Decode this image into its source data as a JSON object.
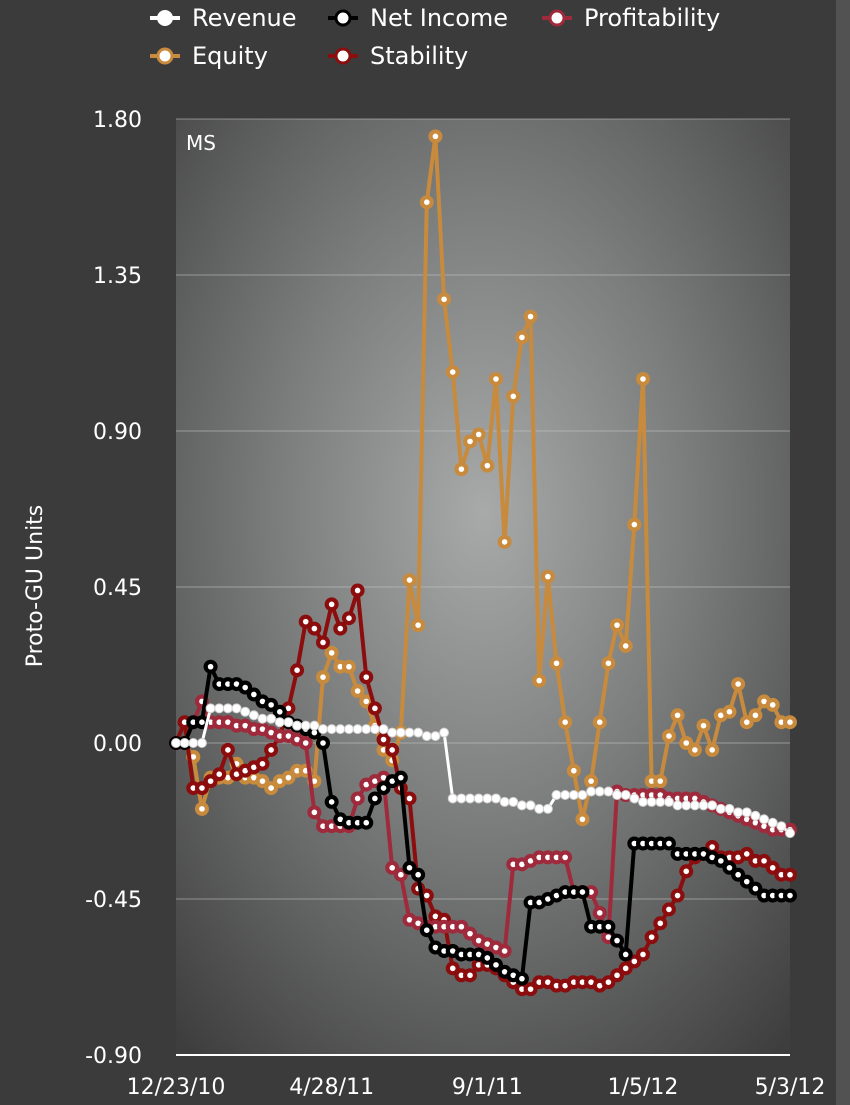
{
  "chart_data": {
    "type": "line",
    "panel_label": "MS",
    "ylabel": "Proto-GU Units",
    "ylim": [
      -0.9,
      1.8
    ],
    "yticks": [
      "1.80",
      "1.35",
      "0.90",
      "0.45",
      "0.00",
      "-0.45",
      "-0.90"
    ],
    "ytick_values": [
      1.8,
      1.35,
      0.9,
      0.45,
      0.0,
      -0.45,
      -0.9
    ],
    "xlim": [
      "2010-12-23",
      "2012-05-03"
    ],
    "xticks": [
      "12/23/10",
      "4/28/11",
      "9/1/11",
      "1/5/12",
      "5/3/12"
    ],
    "xtick_dates": [
      "2010-12-23",
      "2011-04-28",
      "2011-09-01",
      "2012-01-05",
      "2012-05-03"
    ],
    "grid": "horizontal",
    "legend_position": "top",
    "series": [
      {
        "name": "Revenue",
        "color": "#ffffff",
        "x": [
          "2010-12-23",
          "2010-12-30",
          "2011-01-06",
          "2011-01-13",
          "2011-01-20",
          "2011-01-27",
          "2011-02-03",
          "2011-02-10",
          "2011-02-17",
          "2011-02-24",
          "2011-03-03",
          "2011-03-10",
          "2011-03-17",
          "2011-03-24",
          "2011-03-31",
          "2011-04-07",
          "2011-04-14",
          "2011-04-21",
          "2011-04-28",
          "2011-05-05",
          "2011-05-12",
          "2011-05-19",
          "2011-05-26",
          "2011-06-02",
          "2011-06-09",
          "2011-06-16",
          "2011-06-23",
          "2011-06-30",
          "2011-07-07",
          "2011-07-14",
          "2011-07-21",
          "2011-07-28",
          "2011-08-04",
          "2011-08-11",
          "2011-08-18",
          "2011-08-25",
          "2011-09-01",
          "2011-09-08",
          "2011-09-15",
          "2011-09-22",
          "2011-09-29",
          "2011-10-06",
          "2011-10-13",
          "2011-10-20",
          "2011-10-27",
          "2011-11-03",
          "2011-11-10",
          "2011-11-17",
          "2011-11-24",
          "2011-12-01",
          "2011-12-08",
          "2011-12-15",
          "2011-12-22",
          "2011-12-29",
          "2012-01-05",
          "2012-01-12",
          "2012-01-19",
          "2012-01-26",
          "2012-02-02",
          "2012-02-09",
          "2012-02-16",
          "2012-02-23",
          "2012-03-01",
          "2012-03-08",
          "2012-03-15",
          "2012-03-22",
          "2012-03-29",
          "2012-04-05",
          "2012-04-12",
          "2012-04-19",
          "2012-04-26",
          "2012-05-03"
        ],
        "values": [
          0.0,
          0.0,
          0.0,
          0.0,
          0.1,
          0.1,
          0.1,
          0.1,
          0.09,
          0.08,
          0.07,
          0.07,
          0.06,
          0.06,
          0.05,
          0.05,
          0.05,
          0.04,
          0.04,
          0.04,
          0.04,
          0.04,
          0.04,
          0.04,
          0.04,
          0.03,
          0.03,
          0.03,
          0.03,
          0.02,
          0.02,
          0.03,
          -0.16,
          -0.16,
          -0.16,
          -0.16,
          -0.16,
          -0.16,
          -0.17,
          -0.17,
          -0.18,
          -0.18,
          -0.19,
          -0.19,
          -0.15,
          -0.15,
          -0.15,
          -0.15,
          -0.14,
          -0.14,
          -0.14,
          -0.15,
          -0.15,
          -0.16,
          -0.17,
          -0.17,
          -0.17,
          -0.17,
          -0.18,
          -0.18,
          -0.18,
          -0.18,
          -0.18,
          -0.19,
          -0.19,
          -0.2,
          -0.2,
          -0.21,
          -0.22,
          -0.23,
          -0.24,
          -0.26
        ]
      },
      {
        "name": "Net Income",
        "color": "#000000",
        "x": [
          "2010-12-23",
          "2010-12-30",
          "2011-01-06",
          "2011-01-13",
          "2011-01-20",
          "2011-01-27",
          "2011-02-03",
          "2011-02-10",
          "2011-02-17",
          "2011-02-24",
          "2011-03-03",
          "2011-03-10",
          "2011-03-17",
          "2011-03-24",
          "2011-03-31",
          "2011-04-07",
          "2011-04-14",
          "2011-04-21",
          "2011-04-28",
          "2011-05-05",
          "2011-05-12",
          "2011-05-19",
          "2011-05-26",
          "2011-06-02",
          "2011-06-09",
          "2011-06-16",
          "2011-06-23",
          "2011-06-30",
          "2011-07-07",
          "2011-07-14",
          "2011-07-21",
          "2011-07-28",
          "2011-08-04",
          "2011-08-11",
          "2011-08-18",
          "2011-08-25",
          "2011-09-01",
          "2011-09-08",
          "2011-09-15",
          "2011-09-22",
          "2011-09-29",
          "2011-10-06",
          "2011-10-13",
          "2011-10-20",
          "2011-10-27",
          "2011-11-03",
          "2011-11-10",
          "2011-11-17",
          "2011-11-24",
          "2011-12-01",
          "2011-12-08",
          "2011-12-15",
          "2011-12-22",
          "2011-12-29",
          "2012-01-05",
          "2012-01-12",
          "2012-01-19",
          "2012-01-26",
          "2012-02-02",
          "2012-02-09",
          "2012-02-16",
          "2012-02-23",
          "2012-03-01",
          "2012-03-08",
          "2012-03-15",
          "2012-03-22",
          "2012-03-29",
          "2012-04-05",
          "2012-04-12",
          "2012-04-19",
          "2012-04-26",
          "2012-05-03"
        ],
        "values": [
          0.0,
          0.0,
          0.06,
          0.06,
          0.22,
          0.17,
          0.17,
          0.17,
          0.16,
          0.14,
          0.12,
          0.11,
          0.09,
          0.06,
          0.05,
          0.04,
          0.03,
          0.0,
          -0.17,
          -0.22,
          -0.23,
          -0.23,
          -0.23,
          -0.16,
          -0.13,
          -0.11,
          -0.1,
          -0.36,
          -0.38,
          -0.54,
          -0.59,
          -0.6,
          -0.6,
          -0.61,
          -0.61,
          -0.61,
          -0.62,
          -0.64,
          -0.66,
          -0.67,
          -0.68,
          -0.46,
          -0.46,
          -0.45,
          -0.44,
          -0.43,
          -0.43,
          -0.43,
          -0.53,
          -0.53,
          -0.53,
          -0.57,
          -0.61,
          -0.29,
          -0.29,
          -0.29,
          -0.29,
          -0.29,
          -0.32,
          -0.32,
          -0.32,
          -0.32,
          -0.33,
          -0.34,
          -0.36,
          -0.38,
          -0.4,
          -0.42,
          -0.44,
          -0.44,
          -0.44,
          -0.44
        ]
      },
      {
        "name": "Profitability",
        "color": "#9e2a3c",
        "x": [
          "2010-12-23",
          "2010-12-30",
          "2011-01-06",
          "2011-01-13",
          "2011-01-20",
          "2011-01-27",
          "2011-02-03",
          "2011-02-10",
          "2011-02-17",
          "2011-02-24",
          "2011-03-03",
          "2011-03-10",
          "2011-03-17",
          "2011-03-24",
          "2011-03-31",
          "2011-04-07",
          "2011-04-14",
          "2011-04-21",
          "2011-04-28",
          "2011-05-05",
          "2011-05-12",
          "2011-05-19",
          "2011-05-26",
          "2011-06-02",
          "2011-06-09",
          "2011-06-16",
          "2011-06-23",
          "2011-06-30",
          "2011-07-07",
          "2011-07-14",
          "2011-07-21",
          "2011-07-28",
          "2011-08-04",
          "2011-08-11",
          "2011-08-18",
          "2011-08-25",
          "2011-09-01",
          "2011-09-08",
          "2011-09-15",
          "2011-09-22",
          "2011-09-29",
          "2011-10-06",
          "2011-10-13",
          "2011-10-20",
          "2011-10-27",
          "2011-11-03",
          "2011-11-10",
          "2011-11-17",
          "2011-11-24",
          "2011-12-01",
          "2011-12-08",
          "2011-12-15",
          "2011-12-22",
          "2011-12-29",
          "2012-01-05",
          "2012-01-12",
          "2012-01-19",
          "2012-01-26",
          "2012-02-02",
          "2012-02-09",
          "2012-02-16",
          "2012-02-23",
          "2012-03-01",
          "2012-03-08",
          "2012-03-15",
          "2012-03-22",
          "2012-03-29",
          "2012-04-05",
          "2012-04-12",
          "2012-04-19",
          "2012-04-26",
          "2012-05-03"
        ],
        "values": [
          0.0,
          0.0,
          0.06,
          0.12,
          0.06,
          0.06,
          0.06,
          0.05,
          0.05,
          0.04,
          0.04,
          0.03,
          0.02,
          0.02,
          0.01,
          0.0,
          -0.2,
          -0.24,
          -0.24,
          -0.24,
          -0.24,
          -0.16,
          -0.12,
          -0.11,
          -0.1,
          -0.36,
          -0.38,
          -0.51,
          -0.52,
          -0.53,
          -0.53,
          -0.53,
          -0.53,
          -0.53,
          -0.55,
          -0.57,
          -0.58,
          -0.59,
          -0.6,
          -0.35,
          -0.35,
          -0.34,
          -0.33,
          -0.33,
          -0.33,
          -0.33,
          -0.43,
          -0.43,
          -0.43,
          -0.49,
          -0.56,
          -0.14,
          -0.15,
          -0.15,
          -0.15,
          -0.15,
          -0.15,
          -0.16,
          -0.16,
          -0.16,
          -0.16,
          -0.17,
          -0.18,
          -0.19,
          -0.2,
          -0.21,
          -0.22,
          -0.23,
          -0.24,
          -0.25,
          -0.25,
          -0.25
        ]
      },
      {
        "name": "Equity",
        "color": "#c88a3c",
        "x": [
          "2010-12-23",
          "2010-12-30",
          "2011-01-06",
          "2011-01-13",
          "2011-01-20",
          "2011-01-27",
          "2011-02-03",
          "2011-02-10",
          "2011-02-17",
          "2011-02-24",
          "2011-03-03",
          "2011-03-10",
          "2011-03-17",
          "2011-03-24",
          "2011-03-31",
          "2011-04-07",
          "2011-04-14",
          "2011-04-21",
          "2011-04-28",
          "2011-05-05",
          "2011-05-12",
          "2011-05-19",
          "2011-05-26",
          "2011-06-02",
          "2011-06-09",
          "2011-06-16",
          "2011-06-23",
          "2011-06-30",
          "2011-07-07",
          "2011-07-14",
          "2011-07-21",
          "2011-07-28",
          "2011-08-04",
          "2011-08-11",
          "2011-08-18",
          "2011-08-25",
          "2011-09-01",
          "2011-09-08",
          "2011-09-15",
          "2011-09-22",
          "2011-09-29",
          "2011-10-06",
          "2011-10-13",
          "2011-10-20",
          "2011-10-27",
          "2011-11-03",
          "2011-11-10",
          "2011-11-17",
          "2011-11-24",
          "2011-12-01",
          "2011-12-08",
          "2011-12-15",
          "2011-12-22",
          "2011-12-29",
          "2012-01-05",
          "2012-01-12",
          "2012-01-19",
          "2012-01-26",
          "2012-02-02",
          "2012-02-09",
          "2012-02-16",
          "2012-02-23",
          "2012-03-01",
          "2012-03-08",
          "2012-03-15",
          "2012-03-22",
          "2012-03-29",
          "2012-04-05",
          "2012-04-12",
          "2012-04-19",
          "2012-04-26",
          "2012-05-03"
        ],
        "values": [
          0.0,
          0.0,
          -0.04,
          -0.19,
          -0.1,
          -0.1,
          -0.1,
          -0.06,
          -0.1,
          -0.1,
          -0.11,
          -0.13,
          -0.11,
          -0.1,
          -0.08,
          -0.08,
          -0.11,
          0.19,
          0.26,
          0.22,
          0.22,
          0.15,
          0.12,
          0.05,
          -0.02,
          -0.05,
          0.03,
          0.47,
          0.34,
          1.56,
          1.75,
          1.28,
          1.07,
          0.79,
          0.87,
          0.89,
          0.8,
          1.05,
          0.58,
          1.0,
          1.17,
          1.23,
          0.18,
          0.48,
          0.23,
          0.06,
          -0.08,
          -0.22,
          -0.11,
          0.06,
          0.23,
          0.34,
          0.28,
          0.63,
          1.05,
          -0.11,
          -0.11,
          0.02,
          0.08,
          0.0,
          -0.02,
          0.05,
          -0.02,
          0.08,
          0.09,
          0.17,
          0.06,
          0.08,
          0.12,
          0.11,
          0.06,
          0.06
        ]
      },
      {
        "name": "Stability",
        "color": "#8b0d0d",
        "x": [
          "2010-12-23",
          "2010-12-30",
          "2011-01-06",
          "2011-01-13",
          "2011-01-20",
          "2011-01-27",
          "2011-02-03",
          "2011-02-10",
          "2011-02-17",
          "2011-02-24",
          "2011-03-03",
          "2011-03-10",
          "2011-03-17",
          "2011-03-24",
          "2011-03-31",
          "2011-04-07",
          "2011-04-14",
          "2011-04-21",
          "2011-04-28",
          "2011-05-05",
          "2011-05-12",
          "2011-05-19",
          "2011-05-26",
          "2011-06-02",
          "2011-06-09",
          "2011-06-16",
          "2011-06-23",
          "2011-06-30",
          "2011-07-07",
          "2011-07-14",
          "2011-07-21",
          "2011-07-28",
          "2011-08-04",
          "2011-08-11",
          "2011-08-18",
          "2011-08-25",
          "2011-09-01",
          "2011-09-08",
          "2011-09-15",
          "2011-09-22",
          "2011-09-29",
          "2011-10-06",
          "2011-10-13",
          "2011-10-20",
          "2011-10-27",
          "2011-11-03",
          "2011-11-10",
          "2011-11-17",
          "2011-11-24",
          "2011-12-01",
          "2011-12-08",
          "2011-12-15",
          "2011-12-22",
          "2011-12-29",
          "2012-01-05",
          "2012-01-12",
          "2012-01-19",
          "2012-01-26",
          "2012-02-02",
          "2012-02-09",
          "2012-02-16",
          "2012-02-23",
          "2012-03-01",
          "2012-03-08",
          "2012-03-15",
          "2012-03-22",
          "2012-03-29",
          "2012-04-05",
          "2012-04-12",
          "2012-04-19",
          "2012-04-26",
          "2012-05-03"
        ],
        "values": [
          0.0,
          0.06,
          -0.13,
          -0.13,
          -0.11,
          -0.09,
          -0.02,
          -0.09,
          -0.08,
          -0.07,
          -0.06,
          -0.02,
          0.02,
          0.1,
          0.21,
          0.35,
          0.33,
          0.29,
          0.4,
          0.33,
          0.36,
          0.44,
          0.19,
          0.1,
          0.01,
          -0.02,
          -0.13,
          -0.16,
          -0.42,
          -0.44,
          -0.5,
          -0.51,
          -0.65,
          -0.67,
          -0.67,
          -0.64,
          -0.64,
          -0.65,
          -0.67,
          -0.69,
          -0.71,
          -0.71,
          -0.69,
          -0.69,
          -0.7,
          -0.7,
          -0.69,
          -0.69,
          -0.69,
          -0.7,
          -0.69,
          -0.67,
          -0.65,
          -0.63,
          -0.61,
          -0.56,
          -0.52,
          -0.48,
          -0.44,
          -0.37,
          -0.33,
          -0.32,
          -0.3,
          -0.33,
          -0.33,
          -0.33,
          -0.32,
          -0.34,
          -0.34,
          -0.36,
          -0.38,
          -0.38
        ]
      }
    ]
  }
}
